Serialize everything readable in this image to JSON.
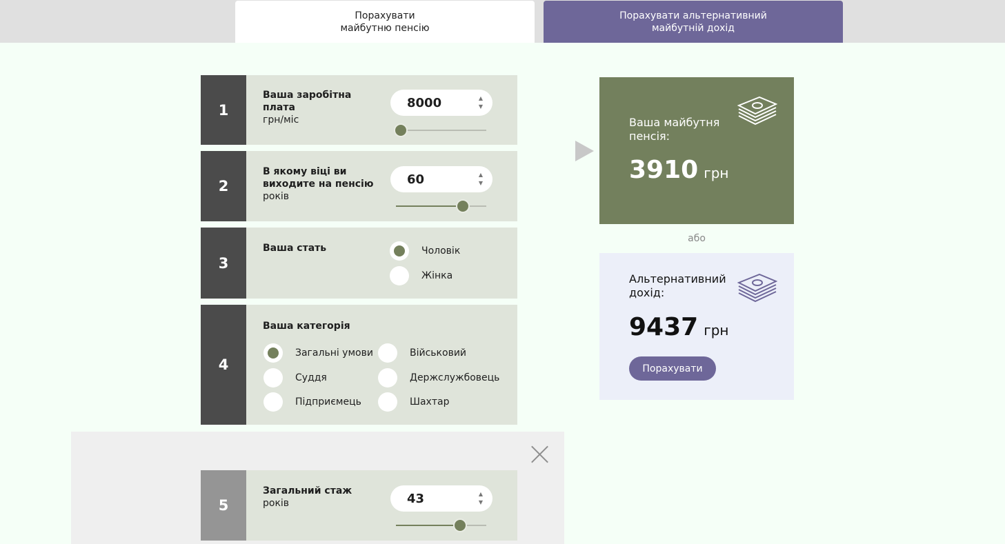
{
  "tabs": [
    {
      "line1": "Порахувати",
      "line2": "майбутню пенсію"
    },
    {
      "line1": "Порахувати альтернативний",
      "line2": "майбутній дохід"
    }
  ],
  "steps": {
    "s1": {
      "num": "1",
      "label": "Ваша заробітна плата",
      "unit": "грн/міс",
      "value": "8000",
      "slider_fraction": 0.05
    },
    "s2": {
      "num": "2",
      "label": "В якому віці ви виходите на пенсію",
      "unit": "років",
      "value": "60",
      "slider_fraction": 0.74
    },
    "s3": {
      "num": "3",
      "label": "Ваша стать",
      "options": [
        "Чоловік",
        "Жінка"
      ],
      "selected": "Чоловік"
    },
    "s4": {
      "num": "4",
      "label": "Ваша категорія",
      "options": [
        "Загальні умови",
        "Військовий",
        "Суддя",
        "Держслужбовець",
        "Підприємець",
        "Шахтар"
      ],
      "selected": "Загальні умови"
    },
    "s5": {
      "num": "5",
      "label": "Загальний стаж",
      "unit": "років",
      "value": "43",
      "slider_fraction": 0.71
    }
  },
  "result_main": {
    "title": "Ваша майбутня пенсія:",
    "value": "3910",
    "currency": "грн"
  },
  "or_text": "або",
  "result_alt": {
    "title": "Альтернативний дохід:",
    "value": "9437",
    "currency": "грн",
    "button": "Порахувати"
  },
  "colors": {
    "accent_green": "#73805d",
    "accent_purple": "#6e6799",
    "card_bg": "#dfe4da",
    "num_bg": "#4b4b4b"
  },
  "icons": [
    "money-stack-icon",
    "close-icon",
    "play-arrow-icon"
  ]
}
